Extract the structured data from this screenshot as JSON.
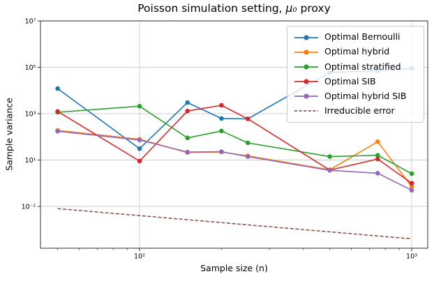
{
  "title": {
    "prefix": "Poisson simulation setting, ",
    "math": "μ₀",
    "suffix": " proxy",
    "full": "Poisson simulation setting, μ₀ proxy"
  },
  "chart_data": {
    "type": "line",
    "title": "Poisson simulation setting, μ₀ proxy",
    "xlabel": "Sample size (n)",
    "ylabel": "Sample variance",
    "x_scale": "log",
    "y_scale": "log",
    "xlim": [
      43,
      1146
    ],
    "ylim": [
      0.0016,
      10000000
    ],
    "grid": true,
    "legend_position": "upper right",
    "x": [
      50,
      100,
      150,
      200,
      250,
      500,
      750,
      1000
    ],
    "series": [
      {
        "name": "Optimal Bernoulli",
        "color": "#1f77b4",
        "style": "solid",
        "marker": true,
        "values": [
          12000,
          31,
          3000,
          620,
          600,
          60000,
          70000,
          90000
        ]
      },
      {
        "name": "Optimal hybrid",
        "color": "#ff7f0e",
        "style": "solid",
        "marker": true,
        "values": [
          190,
          78,
          21,
          22,
          15,
          3.8,
          62,
          0.7
        ]
      },
      {
        "name": "Optimal stratified",
        "color": "#2ca02c",
        "style": "solid",
        "marker": true,
        "values": [
          1150,
          2100,
          90,
          180,
          55,
          14,
          16,
          2.6
        ]
      },
      {
        "name": "Optimal SIB",
        "color": "#d62728",
        "style": "solid",
        "marker": true,
        "values": [
          1250,
          9,
          1300,
          2300,
          600,
          3.7,
          11,
          1.0
        ]
      },
      {
        "name": "Optimal hybrid SIB",
        "color": "#9467bd",
        "style": "solid",
        "marker": true,
        "values": [
          175,
          73,
          22,
          23,
          14,
          3.6,
          2.7,
          0.5
        ]
      },
      {
        "name": "Irreducible error",
        "color": "#8c564b",
        "style": "dashed",
        "marker": false,
        "values": [
          0.08,
          0.04,
          0.0267,
          0.02,
          0.016,
          0.008,
          0.0053,
          0.004
        ]
      }
    ],
    "x_ticks": [
      {
        "v": 100,
        "label": "10²"
      },
      {
        "v": 1000,
        "label": "10³"
      }
    ],
    "x_minor_ticks": [
      50,
      60,
      70,
      80,
      90,
      200,
      300,
      400,
      500,
      600,
      700,
      800,
      900
    ],
    "y_ticks": [
      {
        "v": 10000000,
        "label": "10⁷"
      },
      {
        "v": 100000,
        "label": "10⁵"
      },
      {
        "v": 1000,
        "label": "10³"
      },
      {
        "v": 10,
        "label": "10¹"
      },
      {
        "v": 0.1,
        "label": "10⁻¹"
      }
    ]
  }
}
